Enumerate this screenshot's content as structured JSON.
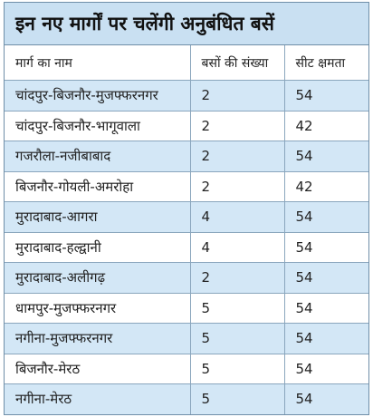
{
  "title": "इन नए मार्गों पर चलेंगी अनुबंधित बसें",
  "table": {
    "header": [
      "मार्ग का नाम",
      "बसों की संख्या",
      "सीट क्षमता"
    ],
    "rows": [
      [
        "चांदपुर-बिजनौर-मुजफ्फरनगर",
        2,
        54
      ],
      [
        "चांदपुर-बिजनौर-भागूवाला",
        2,
        42
      ],
      [
        "गजरौला-नजीबाबाद",
        2,
        54
      ],
      [
        "बिजनौर-गोयली-अमरोहा",
        2,
        42
      ],
      [
        "मुरादाबाद-आगरा",
        4,
        54
      ],
      [
        "मुरादाबाद-हल्द्वानी",
        4,
        54
      ],
      [
        "मुरादाबाद-अलीगढ़",
        2,
        54
      ],
      [
        "धामपुर-मुजफ्फरनगर",
        5,
        54
      ],
      [
        "नगीना-मुजफ्फरनगर",
        5,
        54
      ],
      [
        "बिजनौर-मेरठ",
        5,
        54
      ],
      [
        "नगीना-मेरठ",
        5,
        54
      ]
    ]
  }
}
